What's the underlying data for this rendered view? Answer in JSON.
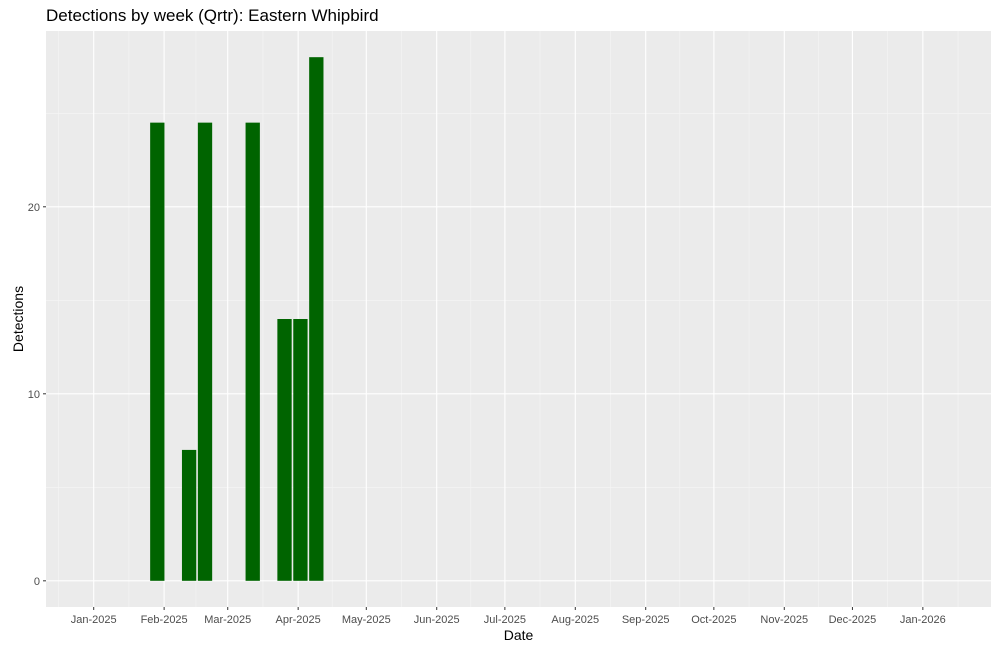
{
  "chart_data": {
    "type": "bar",
    "title": "Detections by week (Qrtr): Eastern Whipbird",
    "xlabel": "Date",
    "ylabel": "Detections",
    "x_axis_type": "date",
    "xlim": [
      "2024-12-11",
      "2026-01-31"
    ],
    "ylim": [
      -1.4,
      29.4
    ],
    "x_ticks": [
      {
        "date": "2025-01-01",
        "label": "Jan-2025"
      },
      {
        "date": "2025-02-01",
        "label": "Feb-2025"
      },
      {
        "date": "2025-03-01",
        "label": "Mar-2025"
      },
      {
        "date": "2025-04-01",
        "label": "Apr-2025"
      },
      {
        "date": "2025-05-01",
        "label": "May-2025"
      },
      {
        "date": "2025-06-01",
        "label": "Jun-2025"
      },
      {
        "date": "2025-07-01",
        "label": "Jul-2025"
      },
      {
        "date": "2025-08-01",
        "label": "Aug-2025"
      },
      {
        "date": "2025-09-01",
        "label": "Sep-2025"
      },
      {
        "date": "2025-10-01",
        "label": "Oct-2025"
      },
      {
        "date": "2025-11-01",
        "label": "Nov-2025"
      },
      {
        "date": "2025-12-01",
        "label": "Dec-2025"
      },
      {
        "date": "2026-01-01",
        "label": "Jan-2026"
      }
    ],
    "y_ticks": [
      0,
      10,
      20
    ],
    "bar_color": "#006400",
    "panel_background": "#ebebeb",
    "grid": true,
    "legend": "none",
    "bars": [
      {
        "x": "2025-01-29",
        "y": 24.5
      },
      {
        "x": "2025-02-12",
        "y": 7
      },
      {
        "x": "2025-02-19",
        "y": 24.5
      },
      {
        "x": "2025-03-12",
        "y": 24.5
      },
      {
        "x": "2025-03-26",
        "y": 14
      },
      {
        "x": "2025-04-02",
        "y": 14
      },
      {
        "x": "2025-04-09",
        "y": 28
      }
    ]
  }
}
